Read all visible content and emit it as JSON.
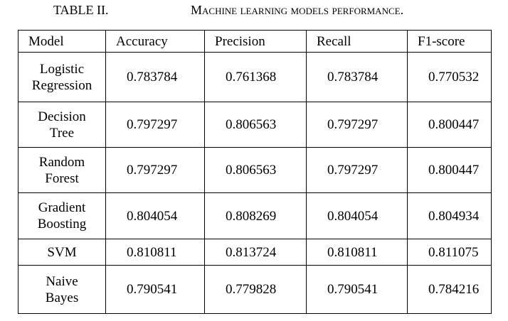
{
  "caption": {
    "label": "TABLE II.",
    "title": "Machine learning models performance."
  },
  "table": {
    "header": [
      "Model",
      "Accuracy",
      "Precision",
      "Recall",
      "F1-score"
    ],
    "rows": [
      [
        "Logistic Regression",
        "0.783784",
        "0.761368",
        "0.783784",
        "0.770532"
      ],
      [
        "Decision Tree",
        "0.797297",
        "0.806563",
        "0.797297",
        "0.800447"
      ],
      [
        "Random Forest",
        "0.797297",
        "0.806563",
        "0.797297",
        "0.800447"
      ],
      [
        "Gradient Boosting",
        "0.804054",
        "0.808269",
        "0.804054",
        "0.804934"
      ],
      [
        "SVM",
        "0.810811",
        "0.813724",
        "0.810811",
        "0.811075"
      ],
      [
        "Naive Bayes",
        "0.790541",
        "0.779828",
        "0.790541",
        "0.784216"
      ]
    ]
  }
}
